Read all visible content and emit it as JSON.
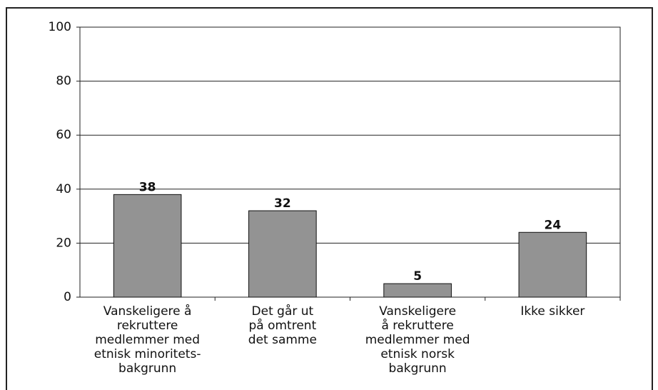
{
  "chart_data": {
    "type": "bar",
    "categories": [
      "Vanskeligere å\nrekruttere\nmedlemmer med\netnisk minoritets-\nbakgrunn",
      "Det går ut\npå omtrent\ndet samme",
      "Vanskeligere\nå rekruttere\nmedlemmer med\netnisk norsk\nbakgrunn",
      "Ikke sikker"
    ],
    "values": [
      38,
      32,
      5,
      24
    ],
    "color": "#939393",
    "ylim": [
      0,
      100
    ],
    "yticks": [
      0,
      20,
      40,
      60,
      80,
      100
    ],
    "grid": true
  }
}
